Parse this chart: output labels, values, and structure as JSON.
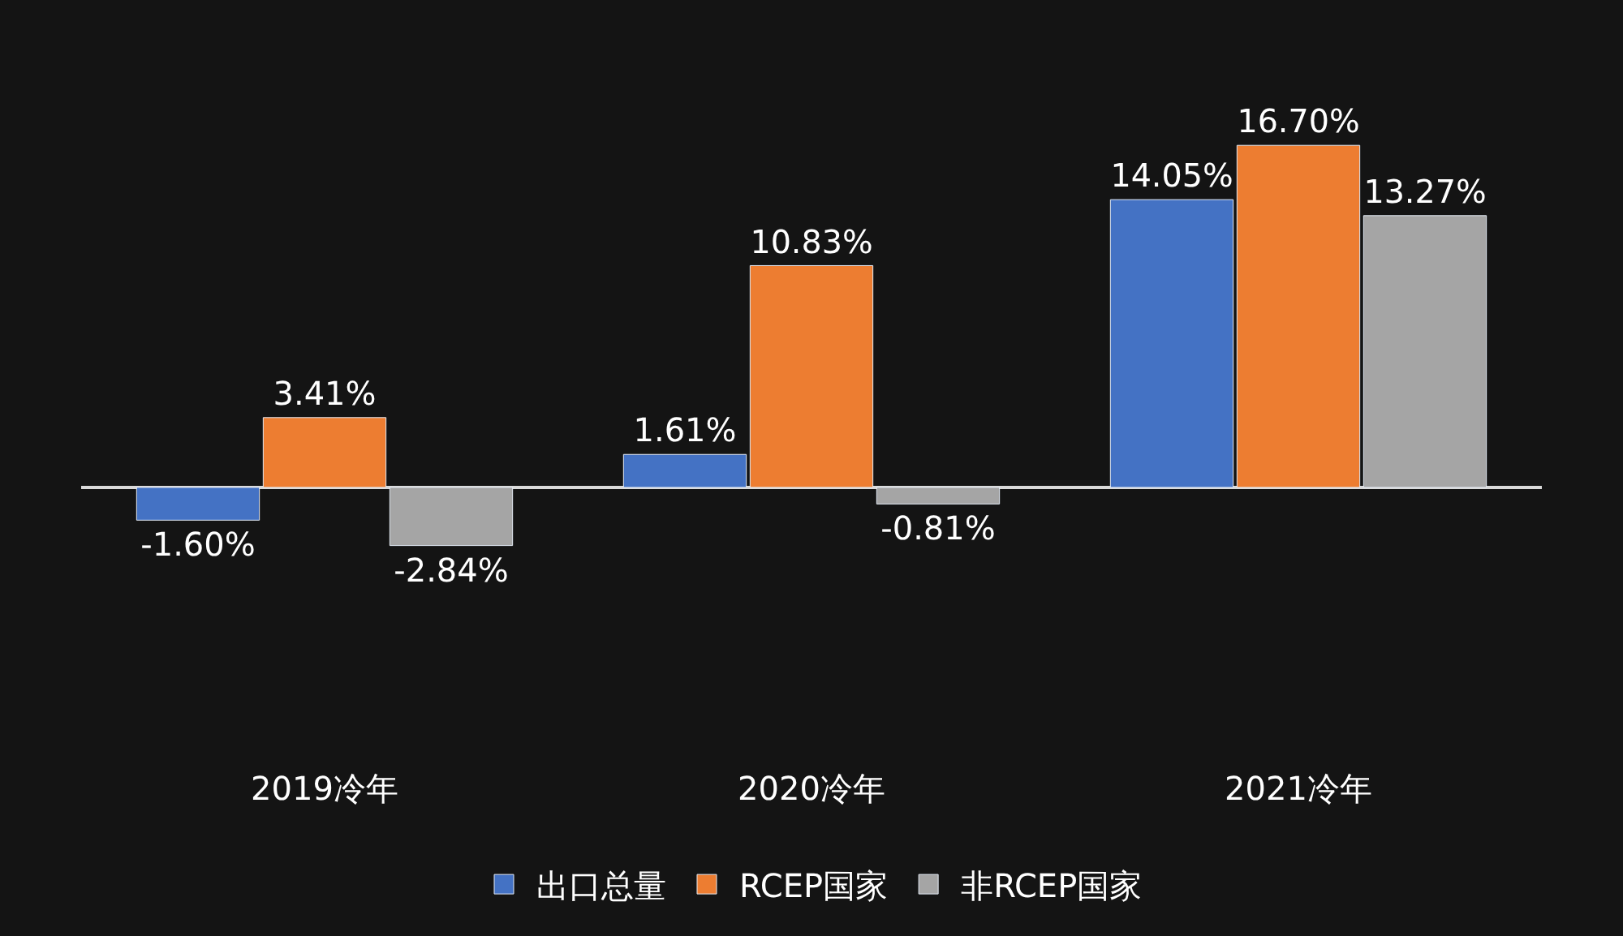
{
  "chart_data": {
    "type": "bar",
    "categories": [
      "2019冷年",
      "2020冷年",
      "2021冷年"
    ],
    "series": [
      {
        "name": "出口总量",
        "color": "#4472c4",
        "values": [
          -1.6,
          1.61,
          14.05
        ],
        "value_labels": [
          "-1.60%",
          "1.61%",
          "14.05%"
        ]
      },
      {
        "name": "RCEP国家",
        "color": "#ed7d31",
        "values": [
          3.41,
          10.83,
          16.7
        ],
        "value_labels": [
          "3.41%",
          "10.83%",
          "16.70%"
        ]
      },
      {
        "name": "非RCEP国家",
        "color": "#a5a5a5",
        "values": [
          -2.84,
          -0.81,
          13.27
        ],
        "value_labels": [
          "-2.84%",
          "-0.81%",
          "13.27%"
        ]
      }
    ],
    "legend": "bottom",
    "grid": false
  }
}
